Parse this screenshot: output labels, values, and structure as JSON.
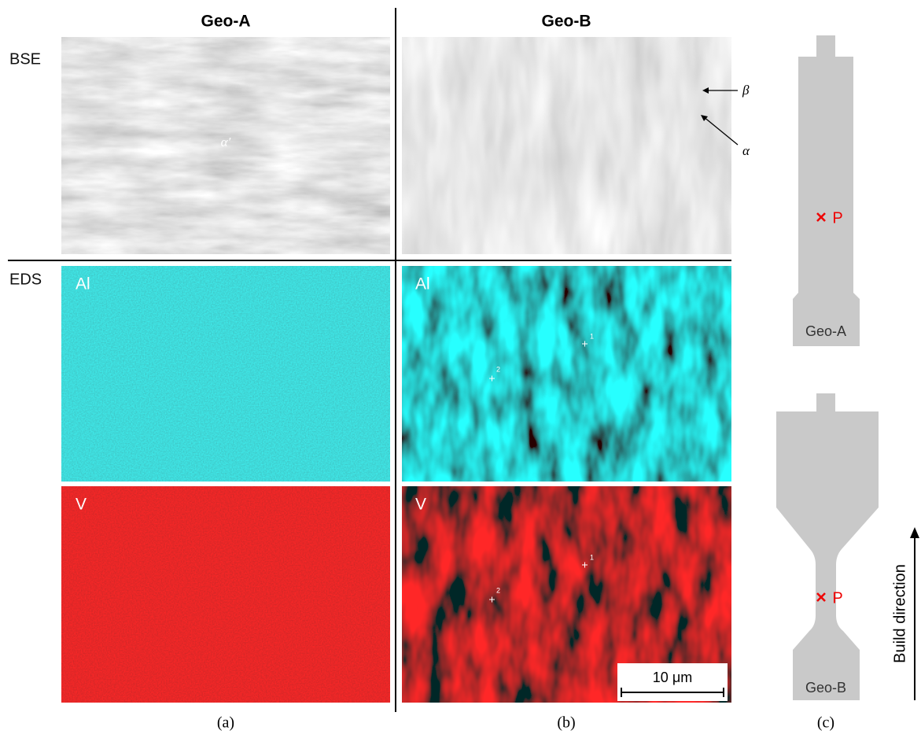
{
  "header": {
    "columns": [
      "Geo-A",
      "Geo-B"
    ]
  },
  "rows": [
    "BSE",
    "EDS"
  ],
  "panels": {
    "al_a": "Al",
    "v_a": "V",
    "al_b": "Al",
    "v_b": "V"
  },
  "annotations": {
    "alpha_prime": "α′",
    "beta": "β",
    "alpha": "α"
  },
  "points": [
    "1",
    "2"
  ],
  "scale_bar": "10 μm",
  "specimens": [
    {
      "label": "Geo-A",
      "point": "P"
    },
    {
      "label": "Geo-B",
      "point": "P"
    }
  ],
  "build_direction": "Build direction",
  "captions": [
    "(a)",
    "(b)",
    "(c)"
  ]
}
